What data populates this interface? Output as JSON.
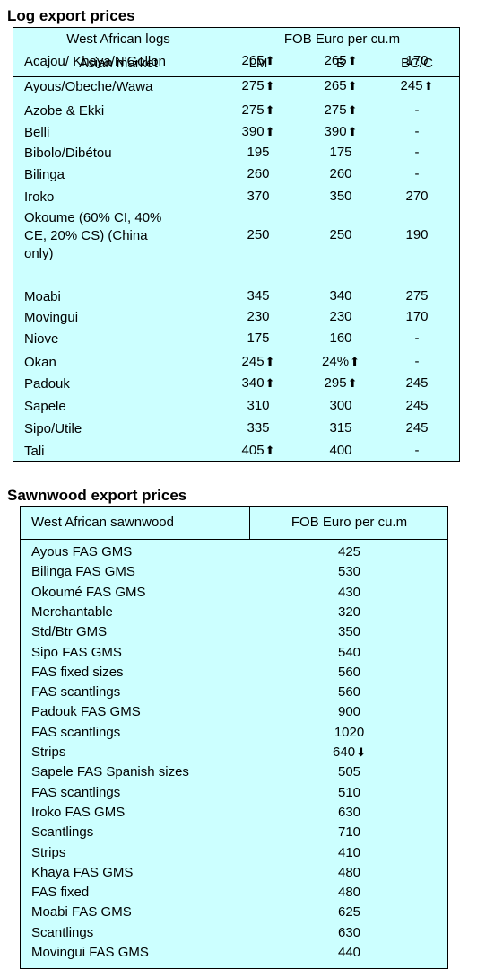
{
  "log_section": {
    "title": "Log export prices",
    "header": {
      "left_top": "West African logs",
      "left_bottom": "Asian market",
      "right_top": "FOB Euro per cu.m",
      "col_lm": "LM",
      "col_b": "B",
      "col_bcc": "BC/C"
    },
    "rows": [
      {
        "name": "Acajou/ Khaya/N'Gollon",
        "lm": "265",
        "lm_up": true,
        "b": "265",
        "b_up": true,
        "bcc": "170",
        "bcc_up": false
      },
      {
        "name": "Ayous/Obeche/Wawa",
        "lm": "275",
        "lm_up": true,
        "b": "265",
        "b_up": true,
        "bcc": "245",
        "bcc_up": true
      },
      {
        "name": "Azobe & Ekki",
        "lm": "275",
        "lm_up": true,
        "b": "275",
        "b_up": true,
        "bcc": "-",
        "bcc_up": false
      },
      {
        "name": "Belli",
        "lm": "390",
        "lm_up": true,
        "b": "390",
        "b_up": true,
        "bcc": "-",
        "bcc_up": false
      },
      {
        "name": "Bibolo/Dibétou",
        "lm": "195",
        "lm_up": false,
        "b": "175",
        "b_up": false,
        "bcc": "-",
        "bcc_up": false
      },
      {
        "name": "Bilinga",
        "lm": "260",
        "lm_up": false,
        "b": "260",
        "b_up": false,
        "bcc": "-",
        "bcc_up": false
      },
      {
        "name": "Iroko",
        "lm": "370",
        "lm_up": false,
        "b": "350",
        "b_up": false,
        "bcc": "270",
        "bcc_up": false
      },
      {
        "name": "Okoume (60% CI, 40%\nCE, 20% CS) (China\nonly)",
        "lm": "250",
        "lm_up": false,
        "b": "250",
        "b_up": false,
        "bcc": "190",
        "bcc_up": false
      },
      {
        "name": "Moabi",
        "lm": "345",
        "lm_up": false,
        "b": "340",
        "b_up": false,
        "bcc": "275",
        "bcc_up": false
      },
      {
        "name": "Movingui",
        "lm": "230",
        "lm_up": false,
        "b": "230",
        "b_up": false,
        "bcc": "170",
        "bcc_up": false
      },
      {
        "name": "Niove",
        "lm": "175",
        "lm_up": false,
        "b": "160",
        "b_up": false,
        "bcc": "-",
        "bcc_up": false
      },
      {
        "name": "Okan",
        "lm": "245",
        "lm_up": true,
        "b": "24%",
        "b_up": true,
        "bcc": "-",
        "bcc_up": false
      },
      {
        "name": "Padouk",
        "lm": "340",
        "lm_up": true,
        "b": "295",
        "b_up": true,
        "bcc": "245",
        "bcc_up": false
      },
      {
        "name": "Sapele",
        "lm": "310",
        "lm_up": false,
        "b": "300",
        "b_up": false,
        "bcc": "245",
        "bcc_up": false
      },
      {
        "name": "Sipo/Utile",
        "lm": "335",
        "lm_up": false,
        "b": "315",
        "b_up": false,
        "bcc": "245",
        "bcc_up": false
      },
      {
        "name": "Tali",
        "lm": "405",
        "lm_up": true,
        "b": "400",
        "b_up": false,
        "bcc": "-",
        "bcc_up": false
      }
    ]
  },
  "sawn_section": {
    "title": "Sawnwood export prices",
    "header": {
      "left": "West African sawnwood",
      "right": "FOB Euro per cu.m"
    },
    "rows": [
      {
        "name": "Ayous FAS GMS",
        "price": "425",
        "trend": ""
      },
      {
        "name": "Bilinga FAS GMS",
        "price": "530",
        "trend": ""
      },
      {
        "name": "Okoumé FAS GMS",
        "price": "430",
        "trend": ""
      },
      {
        "name": "Merchantable",
        "price": "320",
        "trend": ""
      },
      {
        "name": "Std/Btr GMS",
        "price": "350",
        "trend": ""
      },
      {
        "name": "Sipo FAS GMS",
        "price": "540",
        "trend": ""
      },
      {
        "name": "FAS fixed sizes",
        "price": "560",
        "trend": ""
      },
      {
        "name": "FAS scantlings",
        "price": "560",
        "trend": ""
      },
      {
        "name": "Padouk FAS GMS",
        "price": "900",
        "trend": ""
      },
      {
        "name": "FAS scantlings",
        "price": "1020",
        "trend": ""
      },
      {
        "name": "Strips",
        "price": "640",
        "trend": "down"
      },
      {
        "name": "Sapele FAS Spanish sizes",
        "price": "505",
        "trend": ""
      },
      {
        "name": "FAS scantlings",
        "price": "510",
        "trend": ""
      },
      {
        "name": "Iroko FAS GMS",
        "price": "630",
        "trend": ""
      },
      {
        "name": "Scantlings",
        "price": "710",
        "trend": ""
      },
      {
        "name": "Strips",
        "price": "410",
        "trend": ""
      },
      {
        "name": "Khaya FAS GMS",
        "price": "480",
        "trend": ""
      },
      {
        "name": "FAS fixed",
        "price": "480",
        "trend": ""
      },
      {
        "name": "Moabi FAS GMS",
        "price": "625",
        "trend": ""
      },
      {
        "name": "Scantlings",
        "price": "630",
        "trend": ""
      },
      {
        "name": "Movingui FAS GMS",
        "price": "440",
        "trend": ""
      }
    ]
  },
  "icons": {
    "up": "arrow-up-icon",
    "down": "arrow-down-icon"
  }
}
